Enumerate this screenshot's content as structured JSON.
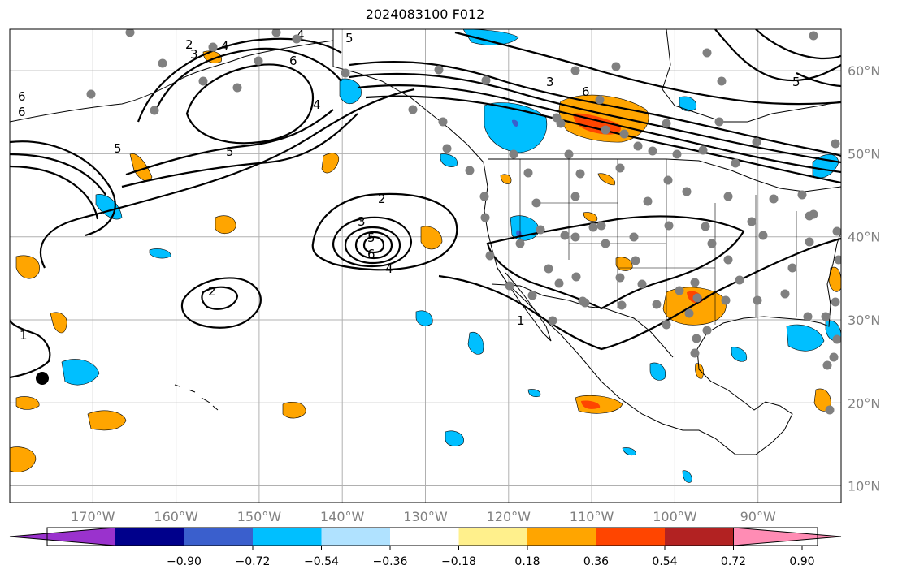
{
  "title": "2024083100 F012",
  "map": {
    "lon_range": [
      -180,
      -80
    ],
    "lat_range": [
      8,
      65
    ],
    "lon_ticks": [
      {
        "value": -170,
        "label": "170°W"
      },
      {
        "value": -160,
        "label": "160°W"
      },
      {
        "value": -150,
        "label": "150°W"
      },
      {
        "value": -140,
        "label": "140°W"
      },
      {
        "value": -130,
        "label": "130°W"
      },
      {
        "value": -120,
        "label": "120°W"
      },
      {
        "value": -110,
        "label": "110°W"
      },
      {
        "value": -100,
        "label": "100°W"
      },
      {
        "value": -90,
        "label": "90°W"
      }
    ],
    "lat_ticks": [
      {
        "value": 60,
        "label": "60°N"
      },
      {
        "value": 50,
        "label": "50°N"
      },
      {
        "value": 40,
        "label": "40°N"
      },
      {
        "value": 30,
        "label": "30°N"
      },
      {
        "value": 20,
        "label": "20°N"
      },
      {
        "value": 10,
        "label": "10°N"
      }
    ],
    "grid": true,
    "contour_labels": [
      "1",
      "2",
      "3",
      "4",
      "5",
      "6"
    ]
  },
  "colorbar": {
    "colors": [
      "#9a32cd",
      "#00008b",
      "#3a5fcd",
      "#00bfff",
      "#b0e2ff",
      "#ffffff",
      "#fff08c",
      "#ffa500",
      "#ff4500",
      "#b22222",
      "#ff8cb4"
    ],
    "tick_labels": [
      "−0.90",
      "−0.72",
      "−0.54",
      "−0.36",
      "−0.18",
      "0.18",
      "0.36",
      "0.54",
      "0.72",
      "0.90"
    ]
  }
}
